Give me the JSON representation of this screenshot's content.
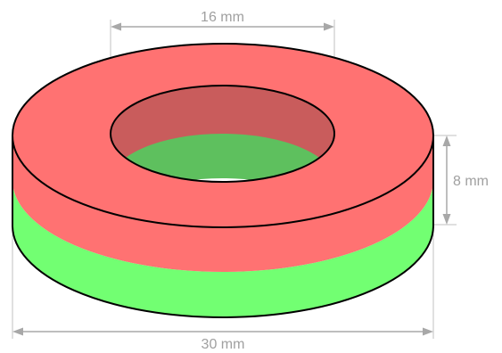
{
  "diagram": {
    "dimensions": {
      "inner_diameter": "16 mm",
      "height": "8 mm",
      "outer_diameter": "30 mm"
    },
    "colors": {
      "north_pole": "#ff7272",
      "north_pole_inner": "#c95c5c",
      "south_pole": "#72ff72",
      "south_pole_inner": "#5ec05e",
      "outline": "#000000",
      "dimension": "#a8a8a8"
    }
  }
}
